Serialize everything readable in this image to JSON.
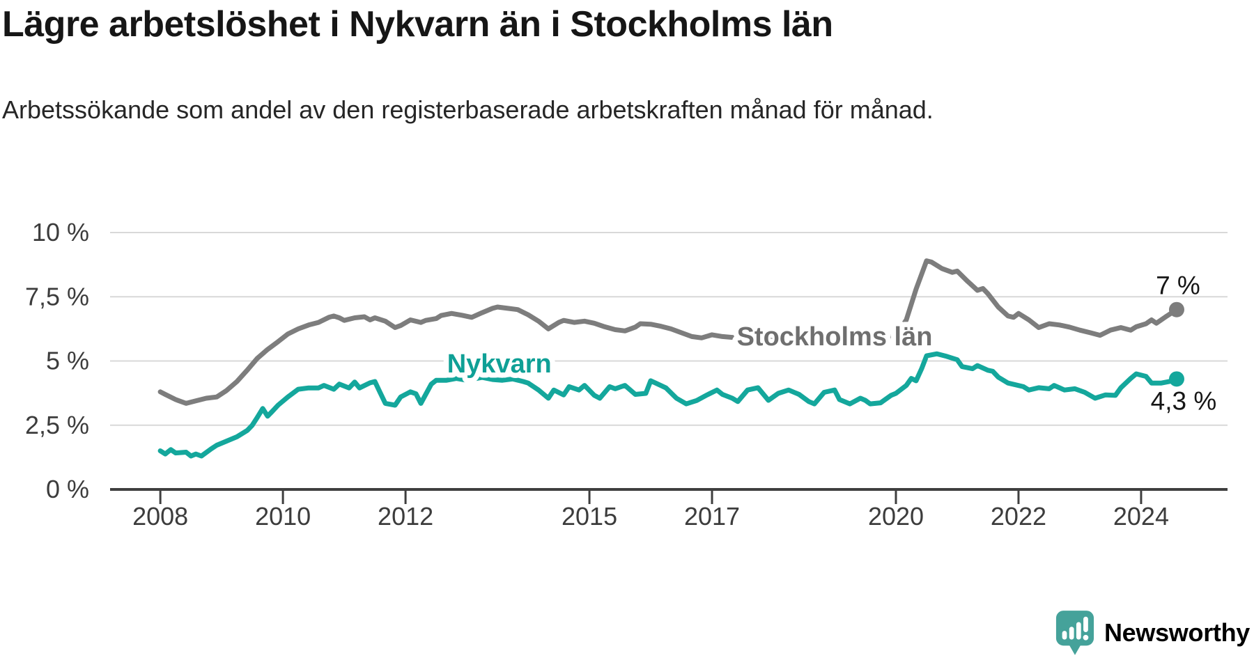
{
  "title": "Lägre arbetslöshet i Nykvarn än i Stockholms län",
  "subtitle": "Arbetssökande som andel av den registerbaserade arbetskraften månad för månad.",
  "branding": {
    "name": "Newsworthy",
    "color": "#45a29a"
  },
  "colors": {
    "background": "#ffffff",
    "title_text": "#161616",
    "subtitle_text": "#262626",
    "gridline": "#d8d8d8",
    "axis_line": "#3f3f3f",
    "axis_text": "#3c3c3c",
    "value_label_text": "#161616"
  },
  "chart_data": {
    "type": "line",
    "title": "Lägre arbetslöshet i Nykvarn än i Stockholms län",
    "subtitle": "Arbetssökande som andel av den registerbaserade arbetskraften månad för månad.",
    "xlabel": "",
    "ylabel": "",
    "grid": true,
    "legend_position": "inline-labels",
    "ylim": [
      0,
      10
    ],
    "xlim": [
      2007.18,
      2025.41
    ],
    "y_ticks": [
      {
        "value": 0,
        "label": "0 %"
      },
      {
        "value": 2.5,
        "label": "2,5 %"
      },
      {
        "value": 5,
        "label": "5 %"
      },
      {
        "value": 7.5,
        "label": "7,5 %"
      },
      {
        "value": 10,
        "label": "10 %"
      }
    ],
    "x_ticks": [
      {
        "value": 2008,
        "label": "2008"
      },
      {
        "value": 2010,
        "label": "2010"
      },
      {
        "value": 2012,
        "label": "2012"
      },
      {
        "value": 2015,
        "label": "2015"
      },
      {
        "value": 2017,
        "label": "2017"
      },
      {
        "value": 2020,
        "label": "2020"
      },
      {
        "value": 2022,
        "label": "2022"
      },
      {
        "value": 2024,
        "label": "2024"
      }
    ],
    "series": [
      {
        "name": "Stockholms län",
        "color": "#7d7d7d",
        "label_color": "#6f6f6f",
        "label_pos": [
          2019.0,
          5.96
        ],
        "end_value_label": "7 %",
        "end_label_offset": [
          2,
          -22
        ],
        "points": [
          [
            2008.0,
            3.8
          ],
          [
            2008.08,
            3.7
          ],
          [
            2008.25,
            3.5
          ],
          [
            2008.42,
            3.35
          ],
          [
            2008.58,
            3.45
          ],
          [
            2008.75,
            3.55
          ],
          [
            2008.92,
            3.6
          ],
          [
            2009.08,
            3.85
          ],
          [
            2009.25,
            4.2
          ],
          [
            2009.42,
            4.65
          ],
          [
            2009.58,
            5.1
          ],
          [
            2009.75,
            5.45
          ],
          [
            2009.92,
            5.75
          ],
          [
            2010.08,
            6.05
          ],
          [
            2010.25,
            6.25
          ],
          [
            2010.42,
            6.4
          ],
          [
            2010.58,
            6.5
          ],
          [
            2010.75,
            6.7
          ],
          [
            2010.83,
            6.75
          ],
          [
            2010.92,
            6.68
          ],
          [
            2011.0,
            6.58
          ],
          [
            2011.17,
            6.68
          ],
          [
            2011.33,
            6.72
          ],
          [
            2011.42,
            6.6
          ],
          [
            2011.5,
            6.68
          ],
          [
            2011.67,
            6.55
          ],
          [
            2011.83,
            6.3
          ],
          [
            2011.92,
            6.38
          ],
          [
            2012.08,
            6.6
          ],
          [
            2012.25,
            6.5
          ],
          [
            2012.33,
            6.58
          ],
          [
            2012.5,
            6.65
          ],
          [
            2012.58,
            6.77
          ],
          [
            2012.75,
            6.85
          ],
          [
            2012.92,
            6.78
          ],
          [
            2013.08,
            6.7
          ],
          [
            2013.25,
            6.88
          ],
          [
            2013.42,
            7.05
          ],
          [
            2013.5,
            7.1
          ],
          [
            2013.67,
            7.05
          ],
          [
            2013.83,
            7.0
          ],
          [
            2014.0,
            6.8
          ],
          [
            2014.17,
            6.55
          ],
          [
            2014.33,
            6.25
          ],
          [
            2014.5,
            6.5
          ],
          [
            2014.58,
            6.58
          ],
          [
            2014.75,
            6.5
          ],
          [
            2014.92,
            6.55
          ],
          [
            2015.08,
            6.47
          ],
          [
            2015.25,
            6.33
          ],
          [
            2015.42,
            6.22
          ],
          [
            2015.58,
            6.17
          ],
          [
            2015.75,
            6.32
          ],
          [
            2015.83,
            6.45
          ],
          [
            2016.0,
            6.43
          ],
          [
            2016.17,
            6.35
          ],
          [
            2016.33,
            6.25
          ],
          [
            2016.5,
            6.1
          ],
          [
            2016.67,
            5.95
          ],
          [
            2016.83,
            5.9
          ],
          [
            2017.0,
            6.02
          ],
          [
            2017.17,
            5.95
          ],
          [
            2017.42,
            5.9
          ],
          [
            2017.75,
            5.85
          ],
          [
            2018.08,
            5.8
          ],
          [
            2018.42,
            5.75
          ],
          [
            2018.75,
            5.72
          ],
          [
            2019.08,
            5.7
          ],
          [
            2019.42,
            5.72
          ],
          [
            2019.75,
            5.8
          ],
          [
            2020.0,
            6.0
          ],
          [
            2020.17,
            6.6
          ],
          [
            2020.33,
            7.8
          ],
          [
            2020.5,
            8.9
          ],
          [
            2020.58,
            8.85
          ],
          [
            2020.75,
            8.6
          ],
          [
            2020.92,
            8.45
          ],
          [
            2021.0,
            8.5
          ],
          [
            2021.17,
            8.1
          ],
          [
            2021.33,
            7.75
          ],
          [
            2021.42,
            7.82
          ],
          [
            2021.5,
            7.62
          ],
          [
            2021.67,
            7.1
          ],
          [
            2021.83,
            6.75
          ],
          [
            2021.92,
            6.7
          ],
          [
            2022.0,
            6.85
          ],
          [
            2022.17,
            6.6
          ],
          [
            2022.33,
            6.3
          ],
          [
            2022.5,
            6.45
          ],
          [
            2022.67,
            6.4
          ],
          [
            2022.83,
            6.32
          ],
          [
            2023.0,
            6.2
          ],
          [
            2023.17,
            6.1
          ],
          [
            2023.33,
            6.0
          ],
          [
            2023.5,
            6.2
          ],
          [
            2023.67,
            6.3
          ],
          [
            2023.83,
            6.2
          ],
          [
            2023.92,
            6.33
          ],
          [
            2024.08,
            6.45
          ],
          [
            2024.17,
            6.6
          ],
          [
            2024.25,
            6.47
          ],
          [
            2024.42,
            6.75
          ],
          [
            2024.58,
            7.0
          ]
        ]
      },
      {
        "name": "Nykvarn",
        "color": "#14a79c",
        "label_color": "#0fa096",
        "label_pos": [
          2013.53,
          4.9
        ],
        "end_value_label": "4,3 %",
        "end_label_offset": [
          10,
          44
        ],
        "points": [
          [
            2008.0,
            1.5
          ],
          [
            2008.08,
            1.38
          ],
          [
            2008.17,
            1.55
          ],
          [
            2008.25,
            1.42
          ],
          [
            2008.42,
            1.45
          ],
          [
            2008.5,
            1.3
          ],
          [
            2008.58,
            1.38
          ],
          [
            2008.67,
            1.3
          ],
          [
            2008.83,
            1.58
          ],
          [
            2008.92,
            1.72
          ],
          [
            2009.08,
            1.88
          ],
          [
            2009.25,
            2.05
          ],
          [
            2009.42,
            2.3
          ],
          [
            2009.5,
            2.5
          ],
          [
            2009.58,
            2.8
          ],
          [
            2009.67,
            3.15
          ],
          [
            2009.75,
            2.85
          ],
          [
            2009.83,
            3.05
          ],
          [
            2009.92,
            3.28
          ],
          [
            2010.08,
            3.6
          ],
          [
            2010.25,
            3.9
          ],
          [
            2010.42,
            3.95
          ],
          [
            2010.58,
            3.95
          ],
          [
            2010.67,
            4.05
          ],
          [
            2010.83,
            3.9
          ],
          [
            2010.92,
            4.1
          ],
          [
            2011.08,
            3.95
          ],
          [
            2011.17,
            4.18
          ],
          [
            2011.25,
            3.95
          ],
          [
            2011.42,
            4.15
          ],
          [
            2011.5,
            4.2
          ],
          [
            2011.58,
            3.8
          ],
          [
            2011.67,
            3.35
          ],
          [
            2011.83,
            3.28
          ],
          [
            2011.92,
            3.6
          ],
          [
            2012.08,
            3.8
          ],
          [
            2012.17,
            3.72
          ],
          [
            2012.25,
            3.35
          ],
          [
            2012.42,
            4.1
          ],
          [
            2012.5,
            4.25
          ],
          [
            2012.67,
            4.25
          ],
          [
            2012.83,
            4.32
          ],
          [
            2013.0,
            4.25
          ],
          [
            2013.25,
            4.36
          ],
          [
            2013.42,
            4.28
          ],
          [
            2013.58,
            4.25
          ],
          [
            2013.75,
            4.3
          ],
          [
            2013.92,
            4.2
          ],
          [
            2014.0,
            4.14
          ],
          [
            2014.17,
            3.87
          ],
          [
            2014.33,
            3.55
          ],
          [
            2014.42,
            3.87
          ],
          [
            2014.58,
            3.68
          ],
          [
            2014.67,
            4.0
          ],
          [
            2014.83,
            3.87
          ],
          [
            2014.92,
            4.05
          ],
          [
            2015.08,
            3.66
          ],
          [
            2015.17,
            3.55
          ],
          [
            2015.33,
            4.0
          ],
          [
            2015.42,
            3.92
          ],
          [
            2015.58,
            4.05
          ],
          [
            2015.75,
            3.7
          ],
          [
            2015.92,
            3.74
          ],
          [
            2016.0,
            4.23
          ],
          [
            2016.08,
            4.14
          ],
          [
            2016.25,
            3.95
          ],
          [
            2016.42,
            3.55
          ],
          [
            2016.58,
            3.33
          ],
          [
            2016.75,
            3.46
          ],
          [
            2016.92,
            3.68
          ],
          [
            2017.08,
            3.87
          ],
          [
            2017.17,
            3.7
          ],
          [
            2017.33,
            3.55
          ],
          [
            2017.42,
            3.42
          ],
          [
            2017.58,
            3.87
          ],
          [
            2017.75,
            3.96
          ],
          [
            2017.92,
            3.47
          ],
          [
            2018.08,
            3.74
          ],
          [
            2018.25,
            3.87
          ],
          [
            2018.42,
            3.7
          ],
          [
            2018.58,
            3.42
          ],
          [
            2018.67,
            3.33
          ],
          [
            2018.83,
            3.78
          ],
          [
            2019.0,
            3.87
          ],
          [
            2019.08,
            3.5
          ],
          [
            2019.25,
            3.33
          ],
          [
            2019.42,
            3.55
          ],
          [
            2019.5,
            3.47
          ],
          [
            2019.58,
            3.33
          ],
          [
            2019.75,
            3.37
          ],
          [
            2019.92,
            3.66
          ],
          [
            2020.0,
            3.74
          ],
          [
            2020.17,
            4.05
          ],
          [
            2020.25,
            4.32
          ],
          [
            2020.33,
            4.23
          ],
          [
            2020.42,
            4.7
          ],
          [
            2020.5,
            5.2
          ],
          [
            2020.67,
            5.28
          ],
          [
            2020.83,
            5.18
          ],
          [
            2021.0,
            5.05
          ],
          [
            2021.08,
            4.78
          ],
          [
            2021.25,
            4.7
          ],
          [
            2021.33,
            4.82
          ],
          [
            2021.5,
            4.64
          ],
          [
            2021.58,
            4.6
          ],
          [
            2021.67,
            4.37
          ],
          [
            2021.83,
            4.14
          ],
          [
            2022.08,
            4.0
          ],
          [
            2022.17,
            3.87
          ],
          [
            2022.33,
            3.96
          ],
          [
            2022.5,
            3.92
          ],
          [
            2022.58,
            4.05
          ],
          [
            2022.75,
            3.87
          ],
          [
            2022.92,
            3.92
          ],
          [
            2023.08,
            3.78
          ],
          [
            2023.25,
            3.55
          ],
          [
            2023.42,
            3.68
          ],
          [
            2023.58,
            3.66
          ],
          [
            2023.67,
            3.96
          ],
          [
            2023.83,
            4.32
          ],
          [
            2023.92,
            4.5
          ],
          [
            2024.08,
            4.4
          ],
          [
            2024.17,
            4.14
          ],
          [
            2024.33,
            4.14
          ],
          [
            2024.5,
            4.22
          ],
          [
            2024.58,
            4.3
          ]
        ]
      }
    ]
  }
}
